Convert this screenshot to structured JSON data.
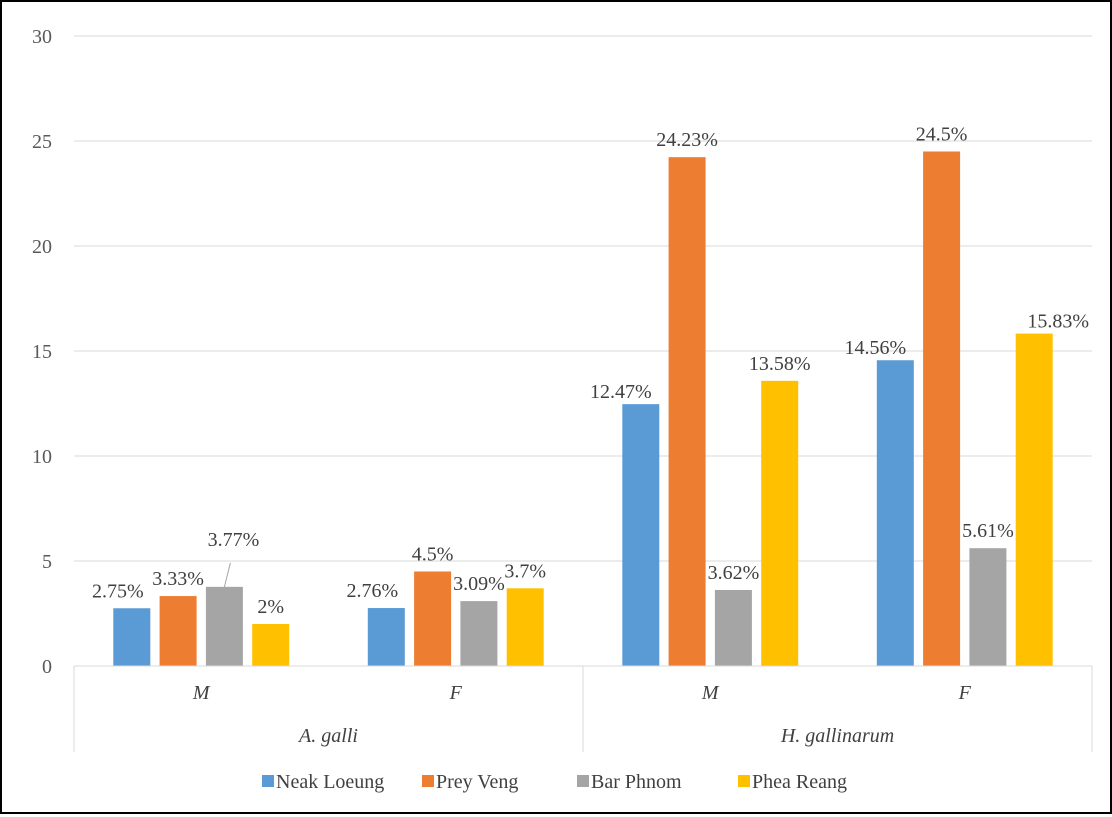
{
  "chart_data": {
    "type": "bar",
    "title": "",
    "xlabel": "",
    "ylabel": "",
    "ylim": [
      0,
      30
    ],
    "yticks": [
      0,
      5,
      10,
      15,
      20,
      25,
      30
    ],
    "grid": true,
    "legend_position": "bottom",
    "groups": [
      {
        "label": "A. galli",
        "categories": [
          "M",
          "F"
        ]
      },
      {
        "label": "H. gallinarum",
        "categories": [
          "M",
          "F"
        ]
      }
    ],
    "series": [
      {
        "name": "Neak Loeung",
        "color": "#5B9BD5",
        "values": [
          2.75,
          2.76,
          12.47,
          14.56
        ],
        "labels": [
          "2.75%",
          "2.76%",
          "12.47%",
          "14.56%"
        ]
      },
      {
        "name": "Prey Veng",
        "color": "#ED7D31",
        "values": [
          3.33,
          4.5,
          24.23,
          24.5
        ],
        "labels": [
          "3.33%",
          "4.5%",
          "24.23%",
          "24.5%"
        ]
      },
      {
        "name": "Bar Phnom",
        "color": "#A5A5A5",
        "values": [
          3.77,
          3.09,
          3.62,
          5.61
        ],
        "labels": [
          "3.77%",
          "3.09%",
          "3.62%",
          "5.61%"
        ]
      },
      {
        "name": "Phea Reang",
        "color": "#FFC000",
        "values": [
          2,
          3.7,
          13.58,
          15.83
        ],
        "labels": [
          "2%",
          "3.7%",
          "13.58%",
          "15.83%"
        ]
      }
    ]
  }
}
